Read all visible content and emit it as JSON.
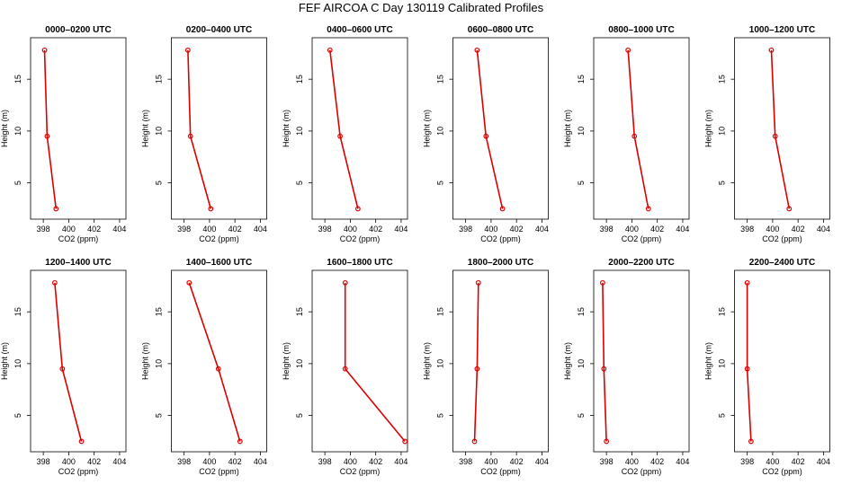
{
  "title": "FEF AIRCOA C  Day 130119  Calibrated Profiles",
  "chart_data": [
    {
      "type": "line",
      "title": "0000–0200 UTC",
      "xlabel": "CO2 (ppm)",
      "ylabel": "Height (m)",
      "xlim": [
        397,
        404.5
      ],
      "ylim": [
        1.5,
        19
      ],
      "xticks": [
        398,
        400,
        402,
        404
      ],
      "yticks": [
        5,
        10,
        15
      ],
      "grid": false,
      "color": "#dd0000",
      "series": [
        {
          "x": [
            398.1,
            398.3,
            399.0
          ],
          "y": [
            17.8,
            9.5,
            2.5
          ]
        }
      ]
    },
    {
      "type": "line",
      "title": "0200–0400 UTC",
      "xlabel": "CO2 (ppm)",
      "ylabel": "Height (m)",
      "xlim": [
        397,
        404.5
      ],
      "ylim": [
        1.5,
        19
      ],
      "xticks": [
        398,
        400,
        402,
        404
      ],
      "yticks": [
        5,
        10,
        15
      ],
      "grid": false,
      "color": "#dd0000",
      "series": [
        {
          "x": [
            398.3,
            398.5,
            400.1
          ],
          "y": [
            17.8,
            9.5,
            2.5
          ]
        }
      ]
    },
    {
      "type": "line",
      "title": "0400–0600 UTC",
      "xlabel": "CO2 (ppm)",
      "ylabel": "Height (m)",
      "xlim": [
        397,
        404.5
      ],
      "ylim": [
        1.5,
        19
      ],
      "xticks": [
        398,
        400,
        402,
        404
      ],
      "yticks": [
        5,
        10,
        15
      ],
      "grid": false,
      "color": "#dd0000",
      "series": [
        {
          "x": [
            398.4,
            399.2,
            400.6
          ],
          "y": [
            17.8,
            9.5,
            2.5
          ]
        }
      ]
    },
    {
      "type": "line",
      "title": "0600–0800 UTC",
      "xlabel": "CO2 (ppm)",
      "ylabel": "Height (m)",
      "xlim": [
        397,
        404.5
      ],
      "ylim": [
        1.5,
        19
      ],
      "xticks": [
        398,
        400,
        402,
        404
      ],
      "yticks": [
        5,
        10,
        15
      ],
      "grid": false,
      "color": "#dd0000",
      "series": [
        {
          "x": [
            398.9,
            399.6,
            400.9
          ],
          "y": [
            17.8,
            9.5,
            2.5
          ]
        }
      ]
    },
    {
      "type": "line",
      "title": "0800–1000 UTC",
      "xlabel": "CO2 (ppm)",
      "ylabel": "Height (m)",
      "xlim": [
        397,
        404.5
      ],
      "ylim": [
        1.5,
        19
      ],
      "xticks": [
        398,
        400,
        402,
        404
      ],
      "yticks": [
        5,
        10,
        15
      ],
      "grid": false,
      "color": "#dd0000",
      "series": [
        {
          "x": [
            399.7,
            400.2,
            401.3
          ],
          "y": [
            17.8,
            9.5,
            2.5
          ]
        }
      ]
    },
    {
      "type": "line",
      "title": "1000–1200 UTC",
      "xlabel": "CO2 (ppm)",
      "ylabel": "Height (m)",
      "xlim": [
        397,
        404.5
      ],
      "ylim": [
        1.5,
        19
      ],
      "xticks": [
        398,
        400,
        402,
        404
      ],
      "yticks": [
        5,
        10,
        15
      ],
      "grid": false,
      "color": "#dd0000",
      "series": [
        {
          "x": [
            399.9,
            400.2,
            401.3
          ],
          "y": [
            17.8,
            9.5,
            2.5
          ]
        }
      ]
    },
    {
      "type": "line",
      "title": "1200–1400 UTC",
      "xlabel": "CO2 (ppm)",
      "ylabel": "Height (m)",
      "xlim": [
        397,
        404.5
      ],
      "ylim": [
        1.5,
        19
      ],
      "xticks": [
        398,
        400,
        402,
        404
      ],
      "yticks": [
        5,
        10,
        15
      ],
      "grid": false,
      "color": "#dd0000",
      "series": [
        {
          "x": [
            398.9,
            399.5,
            401.0
          ],
          "y": [
            17.8,
            9.5,
            2.5
          ]
        }
      ]
    },
    {
      "type": "line",
      "title": "1400–1600 UTC",
      "xlabel": "CO2 (ppm)",
      "ylabel": "Height (m)",
      "xlim": [
        397,
        404.5
      ],
      "ylim": [
        1.5,
        19
      ],
      "xticks": [
        398,
        400,
        402,
        404
      ],
      "yticks": [
        5,
        10,
        15
      ],
      "grid": false,
      "color": "#dd0000",
      "series": [
        {
          "x": [
            398.4,
            400.7,
            402.4
          ],
          "y": [
            17.8,
            9.5,
            2.5
          ]
        }
      ]
    },
    {
      "type": "line",
      "title": "1600–1800 UTC",
      "xlabel": "CO2 (ppm)",
      "ylabel": "Height (m)",
      "xlim": [
        397,
        404.5
      ],
      "ylim": [
        1.5,
        19
      ],
      "xticks": [
        398,
        400,
        402,
        404
      ],
      "yticks": [
        5,
        10,
        15
      ],
      "grid": false,
      "color": "#dd0000",
      "series": [
        {
          "x": [
            399.6,
            399.6,
            404.3
          ],
          "y": [
            17.8,
            9.5,
            2.5
          ]
        }
      ]
    },
    {
      "type": "line",
      "title": "1800–2000 UTC",
      "xlabel": "CO2 (ppm)",
      "ylabel": "Height (m)",
      "xlim": [
        397,
        404.5
      ],
      "ylim": [
        1.5,
        19
      ],
      "xticks": [
        398,
        400,
        402,
        404
      ],
      "yticks": [
        5,
        10,
        15
      ],
      "grid": false,
      "color": "#dd0000",
      "series": [
        {
          "x": [
            399.0,
            398.9,
            398.7
          ],
          "y": [
            17.8,
            9.5,
            2.5
          ]
        }
      ]
    },
    {
      "type": "line",
      "title": "2000–2200 UTC",
      "xlabel": "CO2 (ppm)",
      "ylabel": "Height (m)",
      "xlim": [
        397,
        404.5
      ],
      "ylim": [
        1.5,
        19
      ],
      "xticks": [
        398,
        400,
        402,
        404
      ],
      "yticks": [
        5,
        10,
        15
      ],
      "grid": false,
      "color": "#dd0000",
      "series": [
        {
          "x": [
            397.7,
            397.8,
            398.0
          ],
          "y": [
            17.8,
            9.5,
            2.5
          ]
        }
      ]
    },
    {
      "type": "line",
      "title": "2200–2400 UTC",
      "xlabel": "CO2 (ppm)",
      "ylabel": "Height (m)",
      "xlim": [
        397,
        404.5
      ],
      "ylim": [
        1.5,
        19
      ],
      "xticks": [
        398,
        400,
        402,
        404
      ],
      "yticks": [
        5,
        10,
        15
      ],
      "grid": false,
      "color": "#dd0000",
      "series": [
        {
          "x": [
            398.0,
            398.0,
            398.3
          ],
          "y": [
            17.8,
            9.5,
            2.5
          ]
        }
      ]
    }
  ]
}
